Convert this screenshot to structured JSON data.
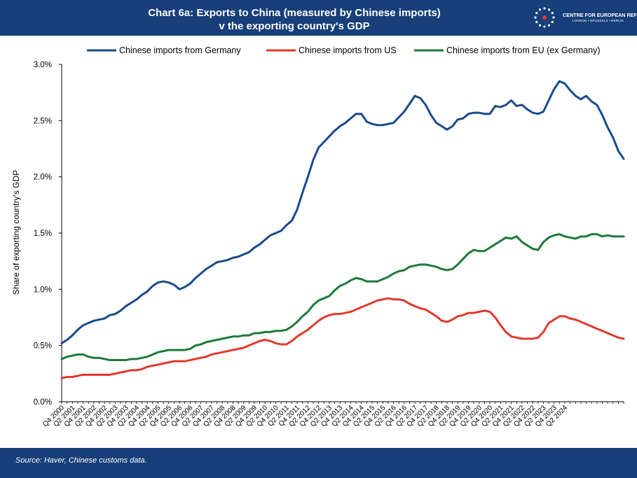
{
  "header": {
    "title_line1": "Chart 6a: Exports to China (measured by Chinese imports)",
    "title_line2": "v the exporting country's GDP",
    "logo_name": "CENTRE FOR EUROPEAN REFORM",
    "logo_cities": "LONDON • BRUSSELS • BERLIN",
    "logo_icon": "eu-stars-icon"
  },
  "footer": {
    "source": "Source: Haver, Chinese customs data."
  },
  "colors": {
    "header_bg": "#173f79",
    "germany": "#1a4a8a",
    "us": "#e03a2e",
    "eu": "#1e7a3a"
  },
  "chart_data": {
    "type": "line",
    "ylabel": "Share of exporting country's GDP",
    "ylim": [
      0,
      3.0
    ],
    "yticks": [
      "0.0%",
      "0.5%",
      "1.0%",
      "1.5%",
      "2.0%",
      "2.5%",
      "3.0%"
    ],
    "ytick_values": [
      0,
      0.5,
      1.0,
      1.5,
      2.0,
      2.5,
      3.0
    ],
    "xtick_labels": [
      "Q4 2000",
      "Q2 2001",
      "Q4 2001",
      "Q2 2002",
      "Q4 2002",
      "Q2 2003",
      "Q4 2003",
      "Q2 2004",
      "Q4 2004",
      "Q2 2005",
      "Q4 2005",
      "Q2 2006",
      "Q4 2006",
      "Q2 2007",
      "Q4 2007",
      "Q2 2008",
      "Q4 2008",
      "Q2 2009",
      "Q4 2009",
      "Q2 2010",
      "Q4 2010",
      "Q2 2011",
      "Q4 2011",
      "Q2 2012",
      "Q4 2012",
      "Q2 2013",
      "Q4 2013",
      "Q2 2014",
      "Q4 2014",
      "Q2 2015",
      "Q4 2015",
      "Q2 2016",
      "Q4 2016",
      "Q2 2017",
      "Q4 2017",
      "Q2 2018",
      "Q4 2018",
      "Q2 2019",
      "Q4 2019",
      "Q2 2020",
      "Q4 2020",
      "Q2 2021",
      "Q4 2021",
      "Q2 2022",
      "Q4 2022",
      "Q2 2023",
      "Q4 2023",
      "Q2 2024"
    ],
    "legend_position": "top",
    "grid": false,
    "series": [
      {
        "name": "Chinese imports from Germany",
        "color": "#1a4a8a",
        "values": [
          0.52,
          0.55,
          0.59,
          0.64,
          0.68,
          0.7,
          0.72,
          0.73,
          0.74,
          0.77,
          0.78,
          0.81,
          0.85,
          0.88,
          0.91,
          0.95,
          0.98,
          1.03,
          1.06,
          1.07,
          1.06,
          1.04,
          1.0,
          1.02,
          1.05,
          1.1,
          1.14,
          1.18,
          1.21,
          1.24,
          1.25,
          1.26,
          1.28,
          1.29,
          1.31,
          1.33,
          1.37,
          1.4,
          1.44,
          1.48,
          1.5,
          1.52,
          1.57,
          1.61,
          1.71,
          1.86,
          2.0,
          2.15,
          2.26,
          2.31,
          2.36,
          2.41,
          2.45,
          2.48,
          2.52,
          2.56,
          2.56,
          2.49,
          2.47,
          2.46,
          2.46,
          2.47,
          2.48,
          2.53,
          2.58,
          2.65,
          2.72,
          2.7,
          2.64,
          2.55,
          2.48,
          2.45,
          2.42,
          2.45,
          2.51,
          2.52,
          2.56,
          2.57,
          2.57,
          2.56,
          2.56,
          2.63,
          2.62,
          2.64,
          2.68,
          2.63,
          2.64,
          2.6,
          2.57,
          2.56,
          2.58,
          2.68,
          2.78,
          2.85,
          2.83,
          2.77,
          2.72,
          2.69,
          2.72,
          2.67,
          2.64,
          2.55,
          2.44,
          2.35,
          2.23,
          2.16
        ]
      },
      {
        "name": "Chinese imports from US",
        "color": "#e03a2e",
        "values": [
          0.21,
          0.22,
          0.22,
          0.23,
          0.24,
          0.24,
          0.24,
          0.24,
          0.24,
          0.24,
          0.25,
          0.26,
          0.27,
          0.28,
          0.28,
          0.29,
          0.31,
          0.32,
          0.33,
          0.34,
          0.35,
          0.36,
          0.36,
          0.36,
          0.37,
          0.38,
          0.39,
          0.4,
          0.42,
          0.43,
          0.44,
          0.45,
          0.46,
          0.47,
          0.48,
          0.5,
          0.52,
          0.54,
          0.55,
          0.54,
          0.52,
          0.51,
          0.51,
          0.54,
          0.58,
          0.61,
          0.64,
          0.68,
          0.72,
          0.75,
          0.77,
          0.78,
          0.78,
          0.79,
          0.8,
          0.82,
          0.84,
          0.86,
          0.88,
          0.9,
          0.91,
          0.92,
          0.91,
          0.91,
          0.9,
          0.87,
          0.85,
          0.83,
          0.82,
          0.79,
          0.76,
          0.72,
          0.71,
          0.73,
          0.76,
          0.77,
          0.79,
          0.79,
          0.8,
          0.81,
          0.8,
          0.75,
          0.68,
          0.62,
          0.58,
          0.57,
          0.56,
          0.56,
          0.56,
          0.57,
          0.62,
          0.7,
          0.73,
          0.76,
          0.76,
          0.74,
          0.73,
          0.71,
          0.69,
          0.67,
          0.65,
          0.63,
          0.61,
          0.59,
          0.57,
          0.56
        ]
      },
      {
        "name": "Chinese imports from EU (ex Germany)",
        "color": "#1e7a3a",
        "values": [
          0.38,
          0.4,
          0.41,
          0.42,
          0.42,
          0.4,
          0.39,
          0.39,
          0.38,
          0.37,
          0.37,
          0.37,
          0.37,
          0.38,
          0.38,
          0.39,
          0.4,
          0.42,
          0.44,
          0.45,
          0.46,
          0.46,
          0.46,
          0.46,
          0.47,
          0.5,
          0.51,
          0.53,
          0.54,
          0.55,
          0.56,
          0.57,
          0.58,
          0.58,
          0.59,
          0.59,
          0.61,
          0.61,
          0.62,
          0.62,
          0.63,
          0.63,
          0.64,
          0.67,
          0.71,
          0.76,
          0.8,
          0.86,
          0.9,
          0.92,
          0.94,
          0.99,
          1.03,
          1.05,
          1.08,
          1.1,
          1.09,
          1.07,
          1.07,
          1.07,
          1.09,
          1.11,
          1.14,
          1.16,
          1.17,
          1.2,
          1.21,
          1.22,
          1.22,
          1.21,
          1.2,
          1.18,
          1.17,
          1.18,
          1.22,
          1.27,
          1.32,
          1.35,
          1.34,
          1.34,
          1.37,
          1.4,
          1.43,
          1.46,
          1.45,
          1.47,
          1.42,
          1.39,
          1.36,
          1.35,
          1.42,
          1.46,
          1.48,
          1.49,
          1.47,
          1.46,
          1.45,
          1.47,
          1.47,
          1.49,
          1.49,
          1.47,
          1.48,
          1.47,
          1.47,
          1.47
        ]
      }
    ]
  }
}
